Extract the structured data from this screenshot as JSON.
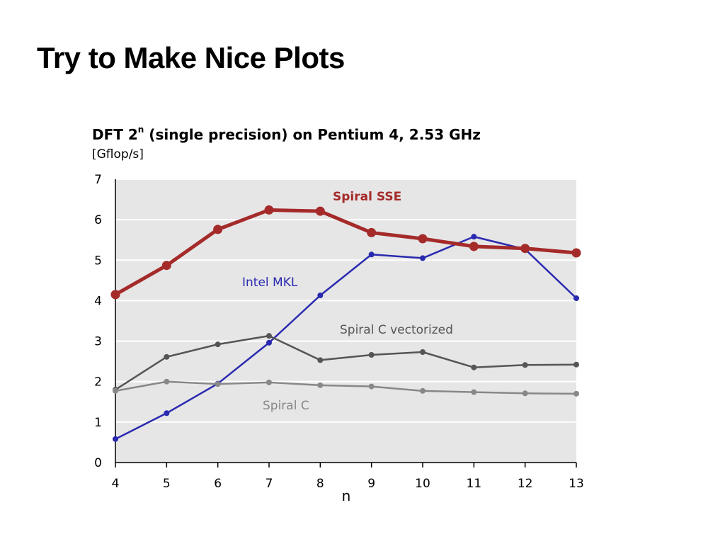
{
  "slide": {
    "title": "Try to Make Nice Plots"
  },
  "chart_data": {
    "type": "line",
    "title_main": "DFT 2",
    "title_sup": "n",
    "title_rest": " (single precision) on Pentium 4, 2.53 GHz",
    "units": "[Gflop/s]",
    "xlabel": "n",
    "ylabel": "",
    "x": [
      4,
      5,
      6,
      7,
      8,
      9,
      10,
      11,
      12,
      13
    ],
    "x_tick_labels": [
      "4",
      "5",
      "6",
      "7",
      "8",
      "9",
      "10",
      "11",
      "12",
      "13"
    ],
    "ylim": [
      0,
      7
    ],
    "y_ticks": [
      0,
      1,
      2,
      3,
      4,
      5,
      6,
      7
    ],
    "grid": true,
    "legend": "inline labels",
    "plot_background": "#e6e6e6",
    "series": [
      {
        "name": "Spiral SSE",
        "color": "#a52a2a",
        "style": "thick",
        "values": [
          4.15,
          4.87,
          5.76,
          6.24,
          6.21,
          5.68,
          5.53,
          5.34,
          5.29,
          5.18
        ]
      },
      {
        "name": "Intel MKL",
        "color": "#2a2ab0",
        "style": "thin",
        "values": [
          0.58,
          1.22,
          1.95,
          2.96,
          4.13,
          5.14,
          5.05,
          5.58,
          5.27,
          4.06
        ]
      },
      {
        "name": "Spiral C vectorized",
        "color": "#555555",
        "style": "thin",
        "values": [
          1.8,
          2.61,
          2.92,
          3.13,
          2.53,
          2.66,
          2.73,
          2.35,
          2.41,
          2.42
        ]
      },
      {
        "name": "Spiral C",
        "color": "#888888",
        "style": "thin",
        "values": [
          1.77,
          2.0,
          1.94,
          1.98,
          1.91,
          1.88,
          1.77,
          1.74,
          1.71,
          1.7
        ]
      }
    ]
  }
}
